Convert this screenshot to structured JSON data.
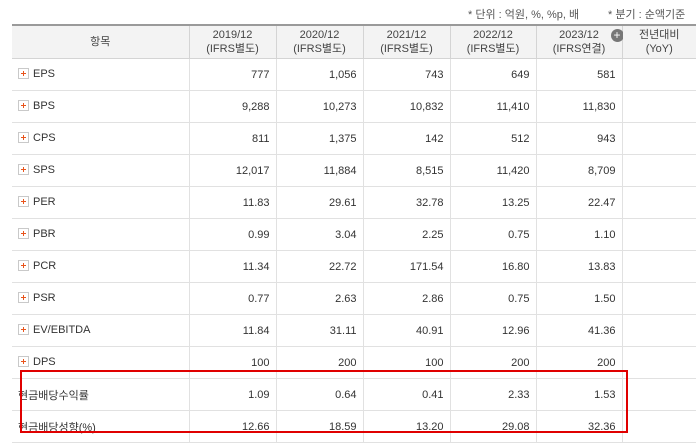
{
  "notes": {
    "unit": "* 단위 : 억원, %, %p, 배",
    "period": "* 분기 : 순액기준"
  },
  "header": {
    "item": "항목",
    "columns": [
      {
        "period": "2019/12",
        "basis": "(IFRS별도)"
      },
      {
        "period": "2020/12",
        "basis": "(IFRS별도)"
      },
      {
        "period": "2021/12",
        "basis": "(IFRS별도)"
      },
      {
        "period": "2022/12",
        "basis": "(IFRS별도)"
      },
      {
        "period": "2023/12",
        "basis": "(IFRS연결)"
      }
    ],
    "yoy_line1": "전년대비",
    "yoy_line2": "(YoY)",
    "expand_icon": "plus-circle-icon"
  },
  "rows": [
    {
      "label": "EPS",
      "values": [
        "777",
        "1,056",
        "743",
        "649",
        "581"
      ],
      "yoy": "",
      "expandable": true
    },
    {
      "label": "BPS",
      "values": [
        "9,288",
        "10,273",
        "10,832",
        "11,410",
        "11,830"
      ],
      "yoy": "",
      "expandable": true
    },
    {
      "label": "CPS",
      "values": [
        "811",
        "1,375",
        "142",
        "512",
        "943"
      ],
      "yoy": "",
      "expandable": true
    },
    {
      "label": "SPS",
      "values": [
        "12,017",
        "11,884",
        "8,515",
        "11,420",
        "8,709"
      ],
      "yoy": "",
      "expandable": true
    },
    {
      "label": "PER",
      "values": [
        "11.83",
        "29.61",
        "32.78",
        "13.25",
        "22.47"
      ],
      "yoy": "",
      "expandable": true
    },
    {
      "label": "PBR",
      "values": [
        "0.99",
        "3.04",
        "2.25",
        "0.75",
        "1.10"
      ],
      "yoy": "",
      "expandable": true
    },
    {
      "label": "PCR",
      "values": [
        "11.34",
        "22.72",
        "171.54",
        "16.80",
        "13.83"
      ],
      "yoy": "",
      "expandable": true
    },
    {
      "label": "PSR",
      "values": [
        "0.77",
        "2.63",
        "2.86",
        "0.75",
        "1.50"
      ],
      "yoy": "",
      "expandable": true
    },
    {
      "label": "EV/EBITDA",
      "values": [
        "11.84",
        "31.11",
        "40.91",
        "12.96",
        "41.36"
      ],
      "yoy": "",
      "expandable": true
    },
    {
      "label": "DPS",
      "values": [
        "100",
        "200",
        "100",
        "200",
        "200"
      ],
      "yoy": "",
      "expandable": true
    },
    {
      "label": "현금배당수익률",
      "values": [
        "1.09",
        "0.64",
        "0.41",
        "2.33",
        "1.53"
      ],
      "yoy": "",
      "expandable": false
    },
    {
      "label": "현금배당성향(%)",
      "values": [
        "12.66",
        "18.59",
        "13.20",
        "29.08",
        "32.36"
      ],
      "yoy": "",
      "expandable": false
    }
  ],
  "highlight": {
    "color": "#e00000"
  }
}
